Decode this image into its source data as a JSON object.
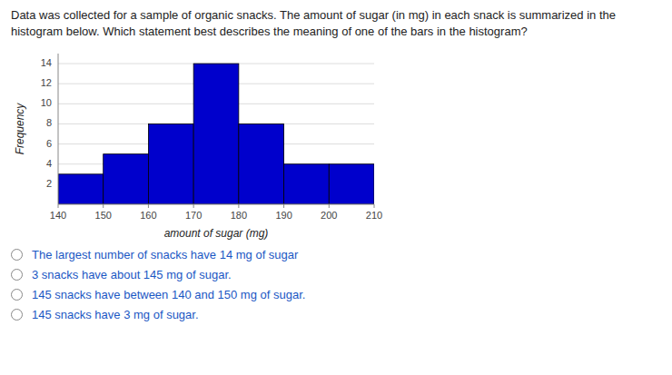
{
  "chart_data": {
    "type": "histogram",
    "title": "Data was collected for a sample of organic snacks. The amount of sugar (in mg) in each snack is summarized in the histogram below. Which statement best describes the meaning of one of the bars in the histogram?",
    "xlabel": "amount of sugar (mg)",
    "ylabel": "Frequency",
    "bins": [
      140,
      150,
      160,
      170,
      180,
      190,
      200,
      210
    ],
    "values": [
      3,
      5,
      8,
      14,
      8,
      4,
      4
    ],
    "color": "#0000CC",
    "xlim": [
      140,
      210
    ],
    "ylim": [
      0,
      15
    ],
    "xticks": [
      140,
      150,
      160,
      170,
      180,
      190,
      200,
      210
    ],
    "yticks": [
      2,
      4,
      6,
      8,
      10,
      12,
      14
    ],
    "grid": true,
    "annotations": [
      "The largest number of snacks have 14 mg of sugar",
      "3 snacks have about 145 mg of sugar.",
      "145 snacks have between 140 and 150 mg of sugar.",
      "145 snacks have 3 mg of sugar."
    ]
  }
}
